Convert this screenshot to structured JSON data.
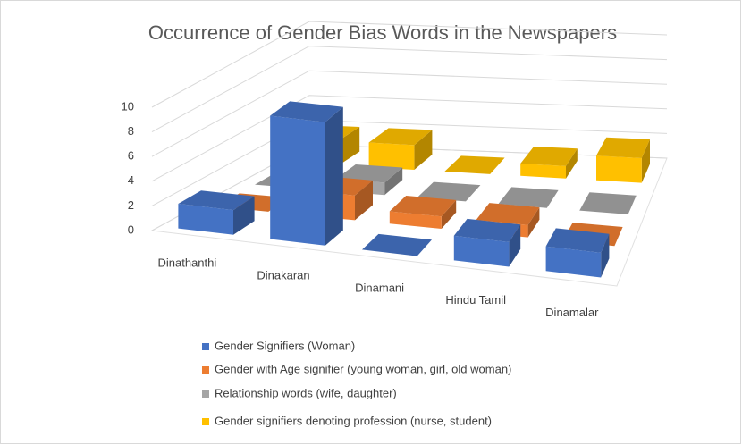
{
  "chart_data": {
    "type": "bar3d",
    "title": "Occurrence of Gender Bias Words in the Newspapers",
    "categories": [
      "Dinathanthi",
      "Dinakaran",
      "Dinamani",
      "Hindu Tamil",
      "Dinamalar"
    ],
    "series": [
      {
        "name": "Gender Signifiers (Woman)",
        "color": "#4472c4",
        "values": [
          2,
          10,
          0,
          2,
          2
        ]
      },
      {
        "name": "Gender with Age signifier (young woman, girl, old woman)",
        "color": "#ed7d31",
        "values": [
          0,
          2,
          1,
          1,
          0
        ]
      },
      {
        "name": "Relationship words (wife, daughter)",
        "color": "#a5a5a5",
        "values": [
          0,
          1,
          0,
          0,
          0
        ]
      },
      {
        "name": "Gender signifiers denoting profession (nurse, student)",
        "color": "#ffc000",
        "values": [
          2,
          2,
          0,
          1,
          2
        ]
      }
    ],
    "ylim": [
      0,
      10
    ],
    "yticks": [
      0,
      2,
      4,
      6,
      8,
      10
    ],
    "grid": true,
    "legend": "bottom"
  }
}
